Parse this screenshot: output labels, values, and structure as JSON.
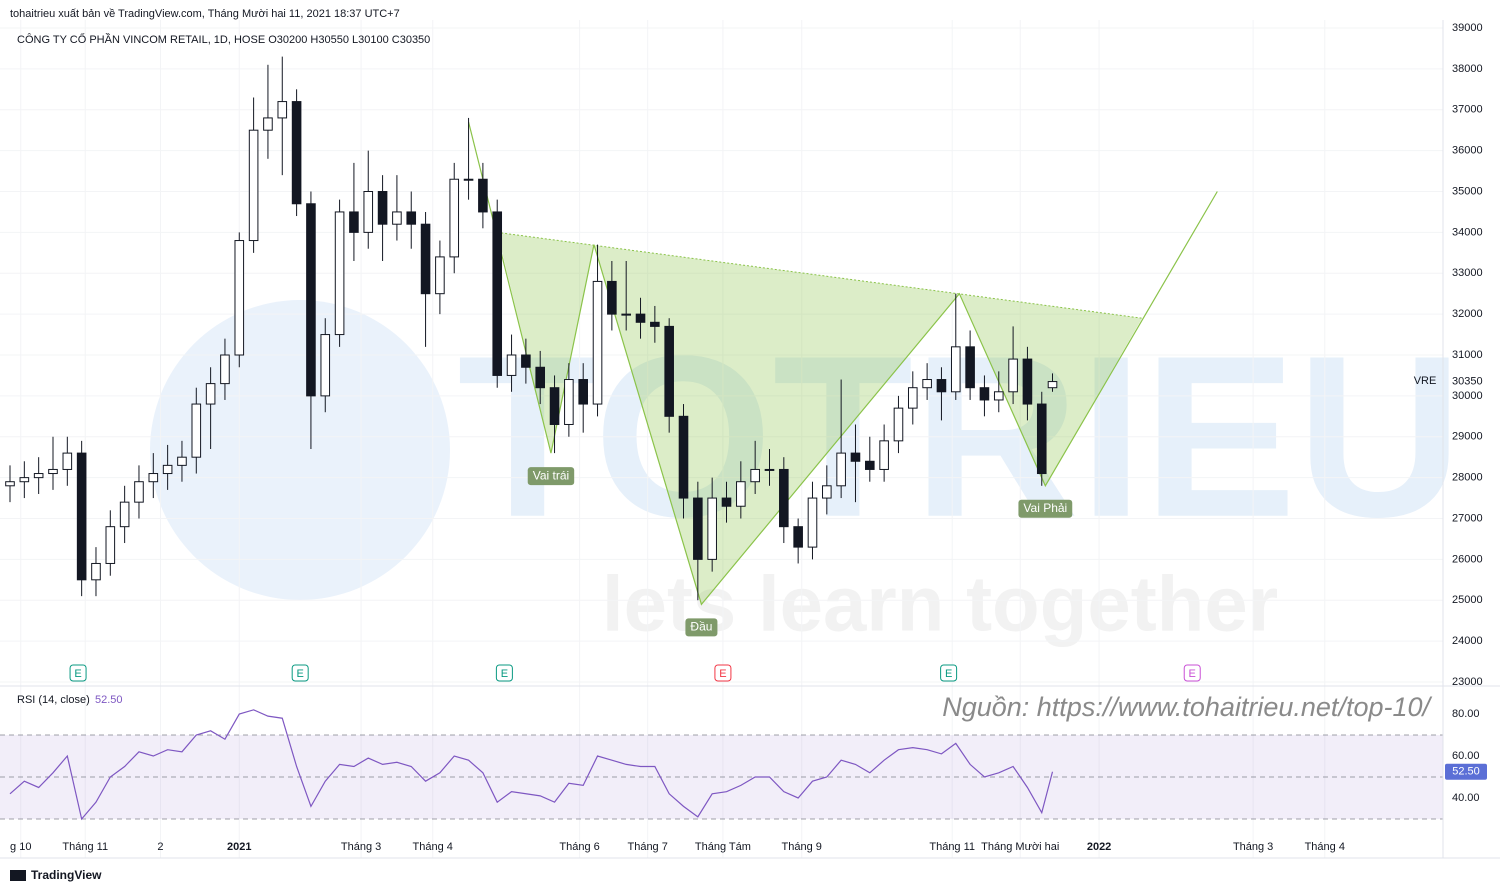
{
  "header": {
    "published": "tohaitrieu xuất bản về TradingView.com, Tháng Mười hai 11, 2021 18:37 UTC+7",
    "symbol": "CÔNG TY CỔ PHẦN VINCOM RETAIL, 1D, HOSE  O30200  H30550  L30100  C30350",
    "ticker": "VRE"
  },
  "watermark": {
    "logo": "TOTRIEU",
    "slogan": "lets learn together"
  },
  "source": "Nguồn: https://www.tohaitrieu.net/top-10/",
  "footer": "TradingView",
  "chart_data": [
    {
      "type": "candlestick",
      "last_price": 30350,
      "xlim": [
        0,
        400
      ],
      "ylim": [
        23000,
        39000
      ],
      "yticks": [
        23000,
        24000,
        25000,
        26000,
        27000,
        28000,
        29000,
        30000,
        31000,
        32000,
        33000,
        34000,
        35000,
        36000,
        37000,
        38000,
        39000
      ],
      "xticks": [
        {
          "value": 3,
          "label": "g 10"
        },
        {
          "value": 21,
          "label": "Tháng 11"
        },
        {
          "value": 42,
          "label": "2"
        },
        {
          "value": 64,
          "label": "2021"
        },
        {
          "value": 98,
          "label": "Tháng 3"
        },
        {
          "value": 118,
          "label": "Tháng 4"
        },
        {
          "value": 159,
          "label": "Tháng 6"
        },
        {
          "value": 178,
          "label": "Tháng 7"
        },
        {
          "value": 199,
          "label": "Tháng Tám"
        },
        {
          "value": 221,
          "label": "Tháng 9"
        },
        {
          "value": 263,
          "label": "Tháng 11"
        },
        {
          "value": 282,
          "label": "Tháng Mười hai"
        },
        {
          "value": 304,
          "label": "2022"
        },
        {
          "value": 347,
          "label": "Tháng 3"
        },
        {
          "value": 367,
          "label": "Tháng 4"
        }
      ],
      "x": [
        0,
        4,
        8,
        12,
        16,
        20,
        24,
        28,
        32,
        36,
        40,
        44,
        48,
        52,
        56,
        60,
        64,
        68,
        72,
        76,
        80,
        84,
        88,
        92,
        96,
        100,
        104,
        108,
        112,
        116,
        120,
        124,
        128,
        132,
        136,
        140,
        144,
        148,
        152,
        156,
        160,
        164,
        168,
        172,
        176,
        180,
        184,
        188,
        192,
        196,
        200,
        204,
        208,
        212,
        216,
        220,
        224,
        228,
        232,
        236,
        240,
        244,
        248,
        252,
        256,
        260,
        264,
        268,
        272,
        276,
        280,
        284,
        288,
        291
      ],
      "ohlc": [
        [
          27800,
          28300,
          27400,
          27900
        ],
        [
          27900,
          28400,
          27500,
          28000
        ],
        [
          28000,
          28500,
          27600,
          28100
        ],
        [
          28100,
          29000,
          27700,
          28200
        ],
        [
          28200,
          29000,
          27800,
          28600
        ],
        [
          28600,
          28900,
          25100,
          25500
        ],
        [
          25500,
          26300,
          25100,
          25900
        ],
        [
          25900,
          27200,
          25600,
          26800
        ],
        [
          26800,
          27800,
          26400,
          27400
        ],
        [
          27400,
          28300,
          27000,
          27900
        ],
        [
          27900,
          28600,
          27500,
          28100
        ],
        [
          28100,
          28800,
          27700,
          28300
        ],
        [
          28300,
          28900,
          27900,
          28500
        ],
        [
          28500,
          30200,
          28100,
          29800
        ],
        [
          29800,
          30700,
          28700,
          30300
        ],
        [
          30300,
          31400,
          29900,
          31000
        ],
        [
          31000,
          34000,
          30700,
          33800
        ],
        [
          33800,
          37300,
          33500,
          36500
        ],
        [
          36500,
          38100,
          35800,
          36800
        ],
        [
          36800,
          38300,
          35400,
          37200
        ],
        [
          37200,
          37500,
          34400,
          34700
        ],
        [
          34700,
          35000,
          28700,
          30000
        ],
        [
          30000,
          31900,
          29600,
          31500
        ],
        [
          31500,
          34800,
          31200,
          34500
        ],
        [
          34500,
          35700,
          33300,
          34000
        ],
        [
          34000,
          36000,
          33600,
          35000
        ],
        [
          35000,
          35400,
          33300,
          34200
        ],
        [
          34200,
          35400,
          33800,
          34500
        ],
        [
          34500,
          35000,
          33600,
          34200
        ],
        [
          34200,
          34500,
          31200,
          32500
        ],
        [
          32500,
          33800,
          32000,
          33400
        ],
        [
          33400,
          35700,
          33000,
          35300
        ],
        [
          35300,
          36800,
          34800,
          35300
        ],
        [
          35300,
          35700,
          34100,
          34500
        ],
        [
          34500,
          34800,
          30200,
          30500
        ],
        [
          30500,
          31500,
          30100,
          31000
        ],
        [
          31000,
          31400,
          30300,
          30700
        ],
        [
          30700,
          31100,
          29800,
          30200
        ],
        [
          30200,
          30500,
          28600,
          29300
        ],
        [
          29300,
          30800,
          29000,
          30400
        ],
        [
          30400,
          30800,
          29100,
          29800
        ],
        [
          29800,
          33700,
          29500,
          32800
        ],
        [
          32800,
          33300,
          31600,
          32000
        ],
        [
          32000,
          33300,
          31600,
          32000
        ],
        [
          32000,
          32400,
          31400,
          31800
        ],
        [
          31800,
          32200,
          31300,
          31700
        ],
        [
          31700,
          31900,
          29100,
          29500
        ],
        [
          29500,
          29800,
          27000,
          27500
        ],
        [
          27500,
          27900,
          25000,
          26000
        ],
        [
          26000,
          28000,
          25700,
          27500
        ],
        [
          27500,
          27900,
          26900,
          27300
        ],
        [
          27300,
          28400,
          27000,
          27900
        ],
        [
          27900,
          28900,
          27600,
          28200
        ],
        [
          28200,
          28700,
          27800,
          28200
        ],
        [
          28200,
          28500,
          26400,
          26800
        ],
        [
          26800,
          27000,
          25900,
          26300
        ],
        [
          26300,
          27900,
          26000,
          27500
        ],
        [
          27500,
          28300,
          27100,
          27800
        ],
        [
          27800,
          30400,
          27500,
          28600
        ],
        [
          28600,
          29300,
          27400,
          28400
        ],
        [
          28400,
          29000,
          27900,
          28200
        ],
        [
          28200,
          29300,
          27900,
          28900
        ],
        [
          28900,
          30000,
          28600,
          29700
        ],
        [
          29700,
          30600,
          29300,
          30200
        ],
        [
          30200,
          30800,
          29900,
          30400
        ],
        [
          30400,
          30700,
          29400,
          30100
        ],
        [
          30100,
          32500,
          29900,
          31200
        ],
        [
          31200,
          31600,
          29900,
          30200
        ],
        [
          30200,
          30500,
          29500,
          29900
        ],
        [
          29900,
          30600,
          29600,
          30100
        ],
        [
          30100,
          31700,
          29800,
          30900
        ],
        [
          30900,
          31200,
          29400,
          29800
        ],
        [
          29800,
          30100,
          27800,
          28100
        ],
        [
          30200,
          30550,
          30100,
          30350
        ]
      ],
      "pattern": {
        "color": "#8bc34a",
        "points": [
          {
            "x": 128,
            "price": 36700
          },
          {
            "x": 134,
            "price": 34600
          },
          {
            "x": 151,
            "price": 28600,
            "label": "Vai trái"
          },
          {
            "x": 163,
            "price": 33700
          },
          {
            "x": 193,
            "price": 24900,
            "label": "Đầu"
          },
          {
            "x": 265,
            "price": 32500
          },
          {
            "x": 289,
            "price": 27800,
            "label": "Vai Phải"
          },
          {
            "x": 337,
            "price": 35000
          }
        ],
        "neckline": [
          {
            "x": 136,
            "price": 34000
          },
          {
            "x": 316,
            "price": 31900
          }
        ]
      },
      "events": [
        {
          "x": 19,
          "label": "E",
          "color": "#089981"
        },
        {
          "x": 81,
          "label": "E",
          "color": "#089981"
        },
        {
          "x": 138,
          "label": "E",
          "color": "#089981"
        },
        {
          "x": 199,
          "label": "E",
          "color": "#f23645"
        },
        {
          "x": 262,
          "label": "E",
          "color": "#089981"
        },
        {
          "x": 330,
          "label": "E",
          "color": "#c94fd6"
        }
      ]
    },
    {
      "type": "line",
      "title": "RSI (14, close)",
      "last_value": 52.5,
      "last_label": "52.50",
      "color": "#7e57c2",
      "xlim": [
        0,
        400
      ],
      "ylim": [
        11.4,
        92.4
      ],
      "yticks": [
        {
          "value": 40,
          "label": "40.00"
        },
        {
          "value": 60,
          "label": "60.00"
        },
        {
          "value": 80,
          "label": "80.00"
        }
      ],
      "levels": [
        70,
        50,
        30
      ],
      "x": [
        0,
        4,
        8,
        12,
        16,
        20,
        24,
        28,
        32,
        36,
        40,
        44,
        48,
        52,
        56,
        60,
        64,
        68,
        72,
        76,
        80,
        84,
        88,
        92,
        96,
        100,
        104,
        108,
        112,
        116,
        120,
        124,
        128,
        132,
        136,
        140,
        144,
        148,
        152,
        156,
        160,
        164,
        168,
        172,
        176,
        180,
        184,
        188,
        192,
        196,
        200,
        204,
        208,
        212,
        216,
        220,
        224,
        228,
        232,
        236,
        240,
        244,
        248,
        252,
        256,
        260,
        264,
        268,
        272,
        276,
        280,
        284,
        288,
        291
      ],
      "values": [
        42,
        48,
        45,
        52,
        60,
        30,
        38,
        50,
        55,
        62,
        60,
        63,
        62,
        70,
        72,
        68,
        80,
        82,
        79,
        78,
        55,
        36,
        48,
        56,
        55,
        59,
        56,
        57,
        55,
        48,
        52,
        60,
        58,
        52,
        38,
        43,
        42,
        41,
        38,
        47,
        46,
        60,
        58,
        56,
        55,
        55,
        42,
        36,
        31,
        42,
        43,
        46,
        50,
        50,
        43,
        40,
        48,
        50,
        58,
        56,
        52,
        58,
        63,
        64,
        63,
        61,
        66,
        56,
        50,
        52,
        55,
        45,
        33,
        52.5
      ]
    }
  ]
}
